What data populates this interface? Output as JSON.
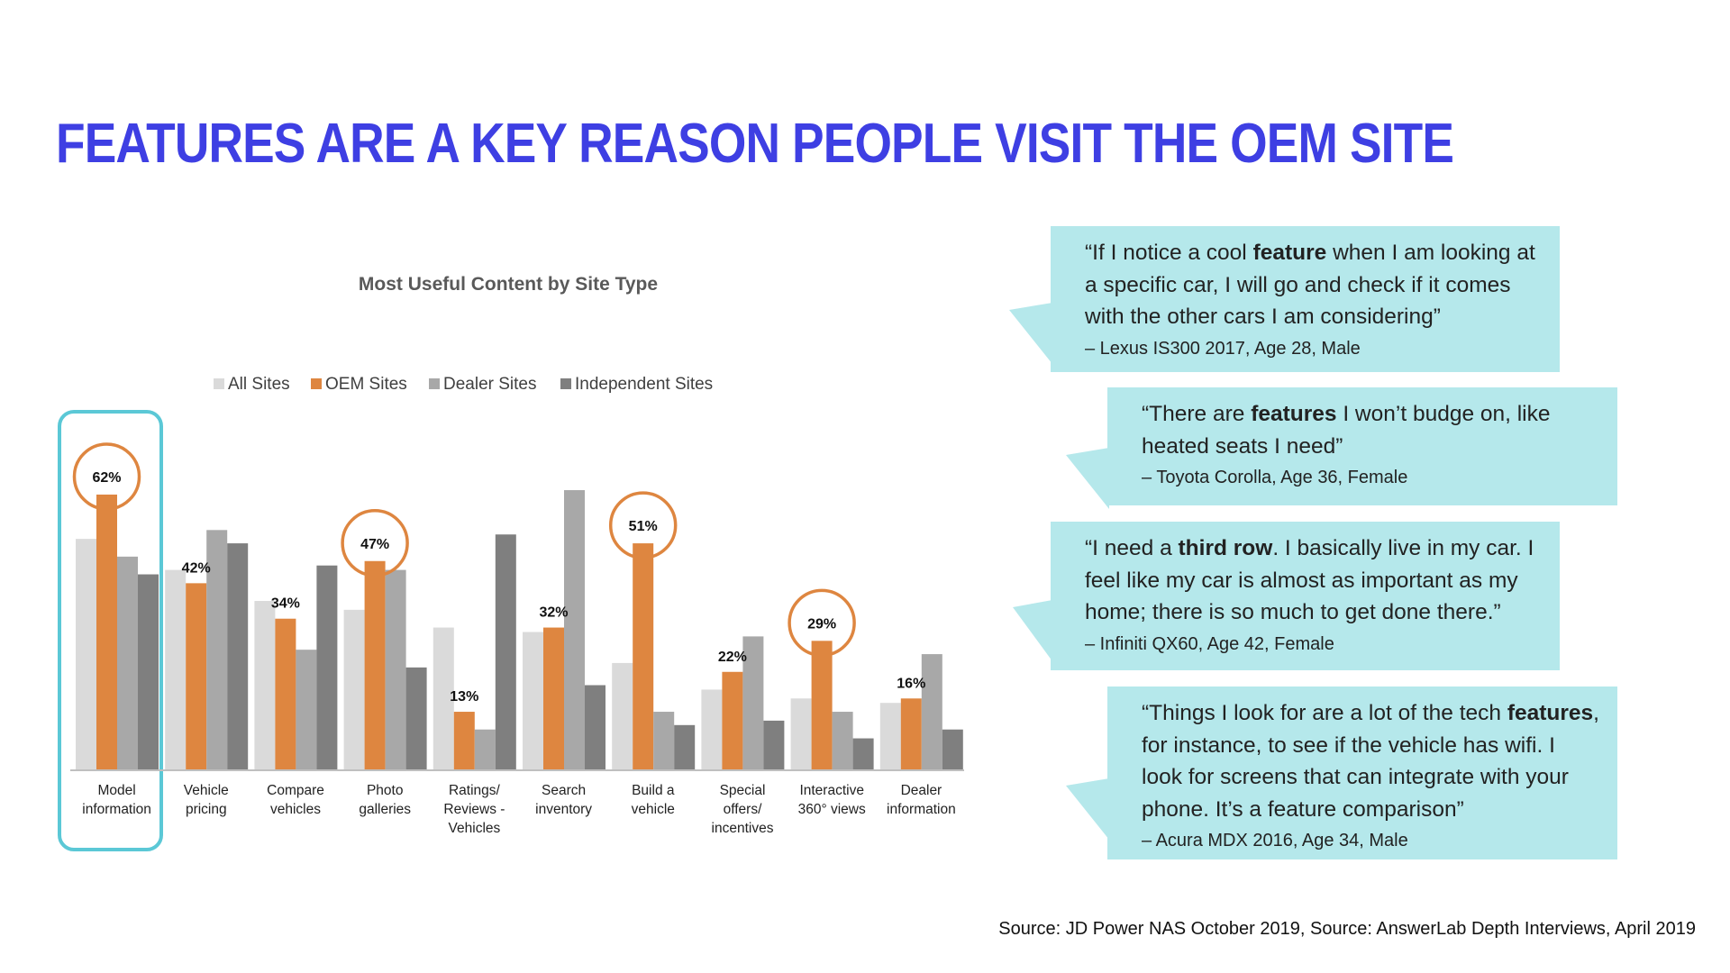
{
  "title": "FEATURES ARE A KEY REASON PEOPLE VISIT THE OEM SITE",
  "chart_data": {
    "type": "bar",
    "title": "Most Useful Content by Site Type",
    "xlabel": "",
    "ylabel": "",
    "ylim": [
      0,
      65
    ],
    "grid": false,
    "legend_position": "top",
    "categories": [
      [
        "Model",
        "information"
      ],
      [
        "Vehicle",
        "pricing"
      ],
      [
        "Compare",
        "vehicles"
      ],
      [
        "Photo",
        "galleries"
      ],
      [
        "Ratings/",
        "Reviews -",
        "Vehicles"
      ],
      [
        "Search",
        "inventory"
      ],
      [
        "Build a",
        "vehicle"
      ],
      [
        "Special",
        "offers/",
        "incentives"
      ],
      [
        "Interactive",
        "360° views"
      ],
      [
        "Dealer",
        "information"
      ]
    ],
    "series": [
      {
        "name": "All Sites",
        "color": "#dadada",
        "values": [
          52,
          45,
          38,
          36,
          32,
          31,
          24,
          18,
          16,
          15
        ]
      },
      {
        "name": "OEM Sites",
        "color": "#de8640",
        "values": [
          62,
          42,
          34,
          47,
          13,
          32,
          51,
          22,
          29,
          16
        ]
      },
      {
        "name": "Dealer Sites",
        "color": "#a8a8a8",
        "values": [
          48,
          54,
          27,
          45,
          9,
          63,
          13,
          30,
          13,
          26
        ]
      },
      {
        "name": "Independent Sites",
        "color": "#7f7f7f",
        "values": [
          44,
          51,
          46,
          23,
          53,
          19,
          10,
          11,
          7,
          9
        ]
      }
    ],
    "data_labels": [
      "62%",
      "42%",
      "34%",
      "47%",
      "13%",
      "32%",
      "51%",
      "22%",
      "29%",
      "16%"
    ],
    "circled_categories": [
      0,
      3,
      6,
      8
    ],
    "highlighted_category": 0,
    "highlight_color": "#5bc8d6"
  },
  "quotes": [
    {
      "segments": [
        {
          "t": "“If I notice a cool "
        },
        {
          "t": "feature",
          "b": true
        },
        {
          "t": " when I am looking at a specific car, I will go and check if it comes with the other cars I am considering”"
        }
      ],
      "attribution": "– Lexus IS300 2017, Age 28, Male"
    },
    {
      "segments": [
        {
          "t": "“There are "
        },
        {
          "t": "features",
          "b": true
        },
        {
          "t": " I won’t budge on, like heated seats I need”"
        }
      ],
      "attribution": "– Toyota Corolla, Age 36, Female"
    },
    {
      "segments": [
        {
          "t": "“I need a "
        },
        {
          "t": "third row",
          "b": true
        },
        {
          "t": ". I basically live in my car. I feel like my car is almost as important as my home; there is so much to get done there.”"
        }
      ],
      "attribution": "– Infiniti QX60, Age 42, Female"
    },
    {
      "segments": [
        {
          "t": "“Things I look for are a lot of the tech "
        },
        {
          "t": "features",
          "b": true
        },
        {
          "t": ", for instance, to see if the vehicle has wifi. I look for screens that can integrate with your phone. It’s a feature comparison”"
        }
      ],
      "attribution": "– Acura MDX 2016, Age 34, Male"
    }
  ],
  "source": "Source: JD Power NAS October 2019, Source: AnswerLab Depth Interviews, April 2019",
  "colors": {
    "title": "#3e3fe3",
    "quote_bg": "#b5e8eb"
  }
}
